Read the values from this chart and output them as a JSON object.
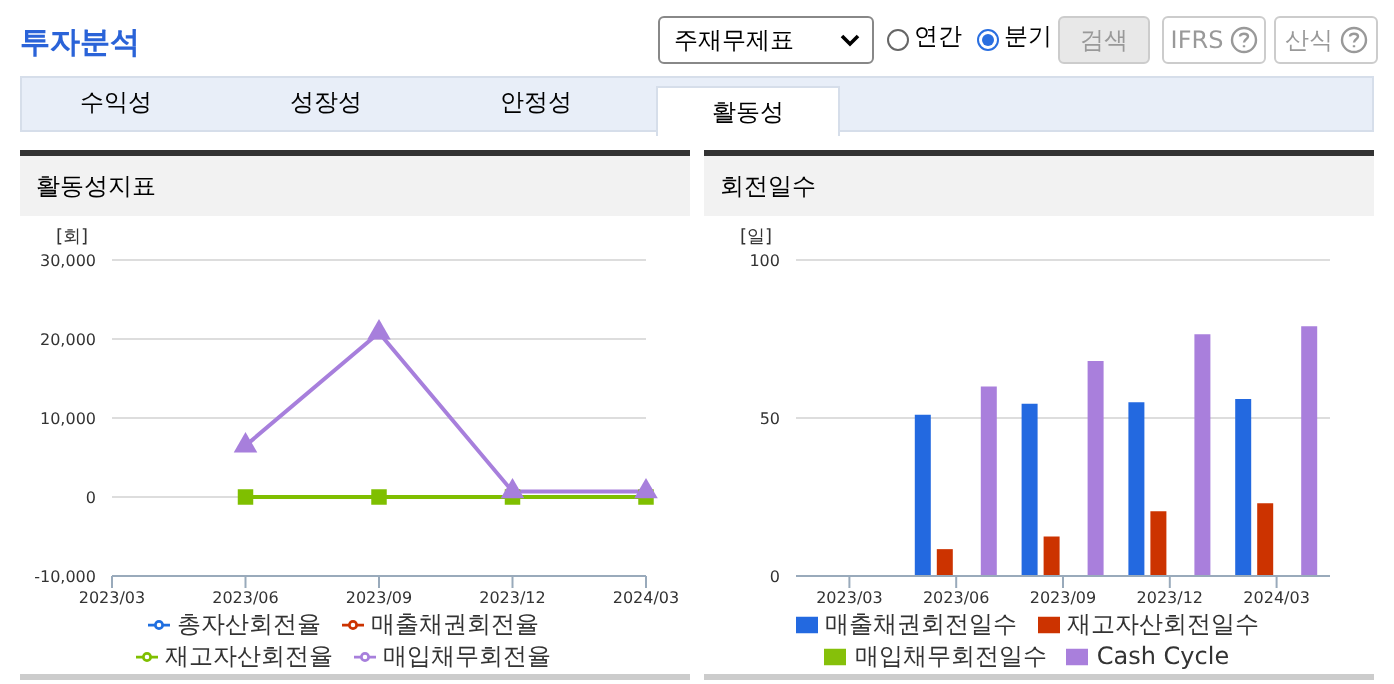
{
  "chart_data": [
    {
      "type": "other",
      "title": "투자분석",
      "annotations": [
        "주재무제표",
        "연간",
        "분기",
        "검색",
        "IFRS",
        "산식",
        "수익성",
        "성장성",
        "안정성",
        "활동성"
      ]
    },
    {
      "type": "line",
      "title": "활동성지표",
      "ylabel": "[회]",
      "categories": [
        "2023/03",
        "2023/06",
        "2023/09",
        "2023/12",
        "2024/03"
      ],
      "series": [
        {
          "name": "총자산회전율",
          "color": "#1f6fe0",
          "marker": "circle",
          "values": [
            null,
            null,
            null,
            null,
            null
          ]
        },
        {
          "name": "매출채권회전율",
          "color": "#cc3300",
          "marker": "diamond",
          "values": [
            null,
            null,
            null,
            null,
            null
          ]
        },
        {
          "name": "재고자산회전율",
          "color": "#7fbf00",
          "marker": "square",
          "values": [
            null,
            0,
            0,
            0,
            0
          ]
        },
        {
          "name": "매입채무회전율",
          "color": "#a77fdc",
          "marker": "triangle",
          "values": [
            null,
            6500,
            20800,
            700,
            700
          ]
        }
      ],
      "ylim": [
        -10000,
        30000
      ],
      "yticks": [
        {
          "value": -10000,
          "label": "-10,000"
        },
        0,
        {
          "value": 10000,
          "label": "10,000"
        },
        {
          "value": 20000,
          "label": "20,000"
        },
        {
          "value": 30000,
          "label": "30,000"
        }
      ],
      "grid": "y",
      "legend": "bottom"
    },
    {
      "type": "bar",
      "title": "회전일수",
      "ylabel": "[일]",
      "categories": [
        "2023/03",
        "2023/06",
        "2023/09",
        "2023/12",
        "2024/03"
      ],
      "series": [
        {
          "name": "매출채권회전일수",
          "color": "#2369e0",
          "values": [
            null,
            51,
            54.5,
            55,
            56
          ]
        },
        {
          "name": "재고자산회전일수",
          "color": "#cc3300",
          "values": [
            null,
            8.5,
            12.5,
            20.5,
            23
          ]
        },
        {
          "name": "매입채무회전일수",
          "color": "#86c00a",
          "values": [
            null,
            null,
            null,
            null,
            null
          ]
        },
        {
          "name": "Cash Cycle",
          "color": "#a97fdc",
          "values": [
            null,
            60,
            68,
            76.5,
            79
          ]
        }
      ],
      "ylim": [
        0,
        100
      ],
      "yticks": [
        0,
        50,
        100
      ],
      "grid": "y",
      "legend": "bottom"
    }
  ]
}
